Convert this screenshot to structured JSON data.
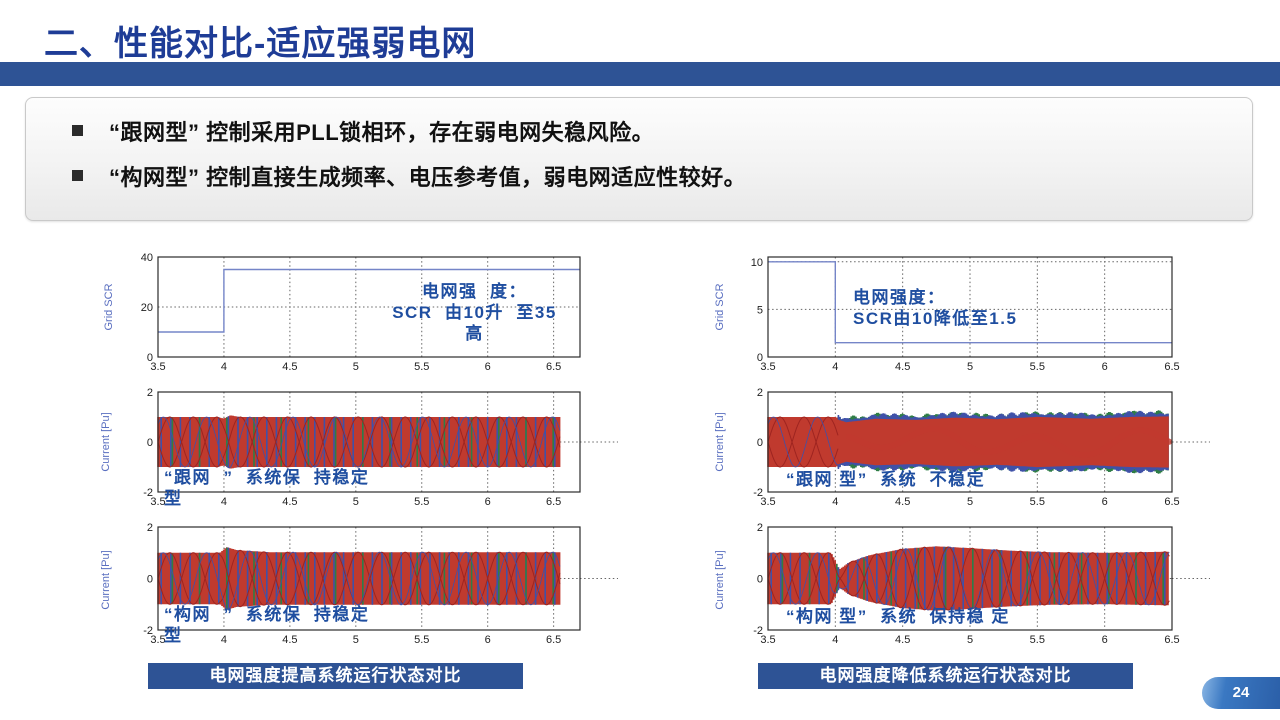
{
  "slide": {
    "title": "二、性能对比-适应强弱电网",
    "page_number": "24",
    "bullets": [
      "“跟网型” 控制采用PLL锁相环，存在弱电网失稳风险。",
      "“构网型” 控制直接生成频率、电压参考值，弱电网适应性较好。"
    ],
    "captions": {
      "left": "电网强度提高系统运行状态对比",
      "right": "电网强度降低系统运行状态对比"
    },
    "colors": {
      "accent_bar": "#2e5395",
      "title_text": "#1e3c96",
      "annotation_blue": "#1f4ea0",
      "axis_label_blue": "#5a6fc0",
      "step_line": "#7585c8",
      "wave_red": "#c03a2e",
      "wave_dark_red": "#9e2420",
      "wave_blue": "#3f51a8",
      "wave_green": "#2e7d46",
      "grid_line": "#666666",
      "tick_text": "#222222"
    }
  },
  "chart_data": [
    {
      "id": "grid-scr-increase",
      "position": "top-left",
      "type": "line",
      "ylabel": "Grid SCR",
      "xlim": [
        3.5,
        6.7
      ],
      "ylim": [
        0,
        40
      ],
      "xticks": [
        3.5,
        4,
        4.5,
        5,
        5.5,
        6,
        6.5
      ],
      "yticks": [
        0,
        20,
        40
      ],
      "ygrid": [
        20
      ],
      "series": [
        {
          "name": "Grid SCR",
          "shape": "step",
          "points": [
            [
              3.5,
              10
            ],
            [
              4,
              10
            ],
            [
              4,
              35
            ],
            [
              6.7,
              35
            ]
          ]
        }
      ],
      "annotation": [
        "电网强  度：",
        "SCR  由10升  至35",
        "高"
      ]
    },
    {
      "id": "gfl-current-strong-grid",
      "position": "mid-left",
      "type": "waveform",
      "ylabel": "Current [Pu]",
      "xlim": [
        3.5,
        6.7
      ],
      "ylim": [
        -2,
        2
      ],
      "xticks": [
        3.5,
        4,
        4.5,
        5,
        5.5,
        6,
        6.5
      ],
      "yticks": [
        -2,
        0,
        2
      ],
      "ygrid": [
        0
      ],
      "band": {
        "amplitude": 1,
        "xend": 6.55,
        "noisy": false,
        "envelope": [
          [
            3.5,
            1
          ],
          [
            3.95,
            1
          ],
          [
            4.0,
            0.94
          ],
          [
            4.05,
            1.07
          ],
          [
            4.12,
            1
          ],
          [
            6.55,
            1
          ]
        ]
      },
      "annotation": [
        "“跟网  ”  系统保  持稳定",
        "型"
      ]
    },
    {
      "id": "gfm-current-strong-grid",
      "position": "bottom-left",
      "type": "waveform",
      "ylabel": "Current [Pu]",
      "xlim": [
        3.5,
        6.7
      ],
      "ylim": [
        -2,
        2
      ],
      "xticks": [
        3.5,
        4,
        4.5,
        5,
        5.5,
        6,
        6.5
      ],
      "yticks": [
        -2,
        0,
        2
      ],
      "ygrid": [
        0
      ],
      "band": {
        "amplitude": 1,
        "xend": 6.55,
        "noisy": false,
        "envelope": [
          [
            3.5,
            1
          ],
          [
            3.97,
            1
          ],
          [
            4.02,
            1.22
          ],
          [
            4.1,
            1.1
          ],
          [
            4.35,
            1.02
          ],
          [
            6.55,
            1.02
          ]
        ]
      },
      "annotation": [
        "“构网  ”  系统保  持稳定",
        "型"
      ]
    },
    {
      "id": "grid-scr-decrease",
      "position": "top-right",
      "type": "line",
      "ylabel": "Grid SCR",
      "xlim": [
        3.5,
        6.5
      ],
      "ylim": [
        0,
        10.5
      ],
      "xticks": [
        3.5,
        4,
        4.5,
        5,
        5.5,
        6,
        6.5
      ],
      "yticks": [
        0,
        5,
        10
      ],
      "ygrid": [
        5,
        10
      ],
      "series": [
        {
          "name": "Grid SCR",
          "shape": "step",
          "points": [
            [
              3.5,
              10
            ],
            [
              4,
              10
            ],
            [
              4,
              1.5
            ],
            [
              6.5,
              1.5
            ]
          ]
        }
      ],
      "annotation": [
        "电网强度：",
        "SCR由10降低至1.5"
      ]
    },
    {
      "id": "gfl-current-weak-grid",
      "position": "mid-right",
      "type": "waveform",
      "ylabel": "Current [Pu]",
      "xlim": [
        3.5,
        6.5
      ],
      "ylim": [
        -2,
        2
      ],
      "xticks": [
        3.5,
        4,
        4.5,
        5,
        5.5,
        6,
        6.5
      ],
      "yticks": [
        -2,
        0,
        2
      ],
      "ygrid": [
        0
      ],
      "band": {
        "amplitude": 1,
        "xend": 6.48,
        "noisy": true,
        "envelope": [
          [
            3.5,
            1
          ],
          [
            4.0,
            1
          ],
          [
            4.08,
            0.85
          ],
          [
            4.3,
            1.0
          ],
          [
            4.6,
            0.95
          ],
          [
            4.9,
            1.05
          ],
          [
            5.2,
            0.98
          ],
          [
            5.5,
            1.08
          ],
          [
            5.9,
            1.0
          ],
          [
            6.2,
            1.08
          ],
          [
            6.48,
            1.1
          ]
        ]
      },
      "annotation": [
        "“跟网 型”  系统  不稳定"
      ]
    },
    {
      "id": "gfm-current-weak-grid",
      "position": "bottom-right",
      "type": "waveform",
      "ylabel": "Current [Pu]",
      "xlim": [
        3.5,
        6.5
      ],
      "ylim": [
        -2,
        2
      ],
      "xticks": [
        3.5,
        4,
        4.5,
        5,
        5.5,
        6,
        6.5
      ],
      "yticks": [
        -2,
        0,
        2
      ],
      "ygrid": [
        0
      ],
      "band": {
        "amplitude": 1,
        "xend": 6.48,
        "noisy": false,
        "envelope": [
          [
            3.5,
            1
          ],
          [
            3.97,
            1
          ],
          [
            4.0,
            0.7
          ],
          [
            4.03,
            0.35
          ],
          [
            4.1,
            0.62
          ],
          [
            4.25,
            0.9
          ],
          [
            4.5,
            1.15
          ],
          [
            4.75,
            1.25
          ],
          [
            5.0,
            1.18
          ],
          [
            5.3,
            1.08
          ],
          [
            5.6,
            1.02
          ],
          [
            6.0,
            1.0
          ],
          [
            6.48,
            1.04
          ]
        ]
      },
      "annotation": [
        "“构网 型”  系统  保持稳 定"
      ]
    }
  ]
}
